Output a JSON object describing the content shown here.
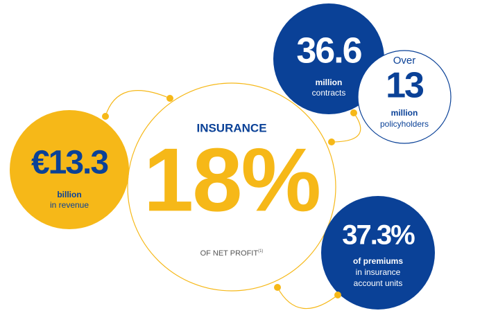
{
  "insurance": {
    "heading": "INSURANCE",
    "figure": "18%",
    "caption": "OF NET PROFIT",
    "footnote": "(1)"
  },
  "revenue": {
    "figure": "€13.3",
    "unit": "billion",
    "caption": "in revenue"
  },
  "contracts": {
    "figure": "36.6",
    "unit": "million",
    "caption": "contracts"
  },
  "policyholders": {
    "prefix": "Over",
    "figure": "13",
    "unit": "million",
    "caption": "policyholders"
  },
  "premiums": {
    "figure": "37.3%",
    "unit": "of premiums",
    "caption_lines": [
      "in insurance",
      "account units"
    ]
  }
}
